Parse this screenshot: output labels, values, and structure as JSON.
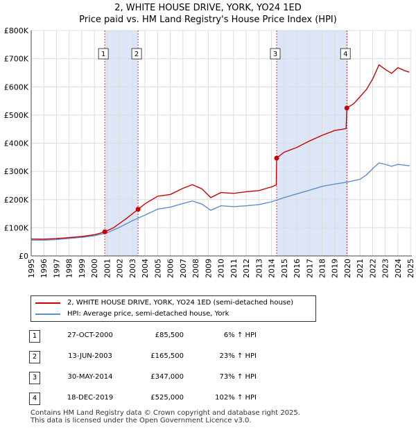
{
  "title_line1": "2, WHITE HOUSE DRIVE, YORK, YO24 1ED",
  "title_line2": "Price paid vs. HM Land Registry's House Price Index (HPI)",
  "colors": {
    "property": "#cc0000",
    "hpi": "#5b8fcf",
    "shade": "#dde6f7",
    "grid": "#dcdcdc"
  },
  "chart_data": {
    "type": "line",
    "title": "2, WHITE HOUSE DRIVE, YORK, YO24 1ED",
    "subtitle": "Price paid vs. HM Land Registry's House Price Index (HPI)",
    "xlabel": "",
    "ylabel": "",
    "xlim": [
      1995,
      2025.1
    ],
    "ylim": [
      0,
      800000
    ],
    "grid": true,
    "x_ticks": [
      1995,
      1996,
      1997,
      1998,
      1999,
      2000,
      2001,
      2002,
      2003,
      2004,
      2005,
      2006,
      2007,
      2008,
      2009,
      2010,
      2011,
      2012,
      2013,
      2014,
      2015,
      2016,
      2017,
      2018,
      2019,
      2020,
      2021,
      2022,
      2023,
      2024,
      2025
    ],
    "y_ticks": [
      {
        "value": 0,
        "label": "£0"
      },
      {
        "value": 100000,
        "label": "£100K"
      },
      {
        "value": 200000,
        "label": "£200K"
      },
      {
        "value": 300000,
        "label": "£300K"
      },
      {
        "value": 400000,
        "label": "£400K"
      },
      {
        "value": 500000,
        "label": "£500K"
      },
      {
        "value": 600000,
        "label": "£600K"
      },
      {
        "value": 700000,
        "label": "£700K"
      },
      {
        "value": 800000,
        "label": "£800K"
      }
    ],
    "shaded_ranges": [
      [
        2000.82,
        2003.45
      ],
      [
        2014.41,
        2019.96
      ]
    ],
    "series": [
      {
        "name": "2, WHITE HOUSE DRIVE, YORK, YO24 1ED (semi-detached house)",
        "color": "#cc0000",
        "points": [
          [
            1995.0,
            60000
          ],
          [
            1996.0,
            59500
          ],
          [
            1997.0,
            61500
          ],
          [
            1998.0,
            65000
          ],
          [
            1999.0,
            69000
          ],
          [
            2000.0,
            75000
          ],
          [
            2000.82,
            85500
          ],
          [
            2001.5,
            100000
          ],
          [
            2002.5,
            132000
          ],
          [
            2003.45,
            165500
          ],
          [
            2004.0,
            185000
          ],
          [
            2005.0,
            212000
          ],
          [
            2006.0,
            218000
          ],
          [
            2007.0,
            240000
          ],
          [
            2007.75,
            253000
          ],
          [
            2008.5,
            238000
          ],
          [
            2009.2,
            207000
          ],
          [
            2010.0,
            225000
          ],
          [
            2011.0,
            222000
          ],
          [
            2012.0,
            228000
          ],
          [
            2013.0,
            232000
          ],
          [
            2014.0,
            245000
          ],
          [
            2014.38,
            252000
          ],
          [
            2014.41,
            347000
          ],
          [
            2015.0,
            368000
          ],
          [
            2016.0,
            385000
          ],
          [
            2017.0,
            408000
          ],
          [
            2018.0,
            428000
          ],
          [
            2019.0,
            445000
          ],
          [
            2019.9,
            452000
          ],
          [
            2019.96,
            525000
          ],
          [
            2020.5,
            540000
          ],
          [
            2021.0,
            565000
          ],
          [
            2021.5,
            590000
          ],
          [
            2022.0,
            628000
          ],
          [
            2022.5,
            678000
          ],
          [
            2023.0,
            662000
          ],
          [
            2023.5,
            648000
          ],
          [
            2024.0,
            668000
          ],
          [
            2024.5,
            658000
          ],
          [
            2024.9,
            652000
          ]
        ]
      },
      {
        "name": "HPI: Average price, semi-detached house, York",
        "color": "#5b8fcf",
        "points": [
          [
            1995.0,
            56000
          ],
          [
            1996.0,
            56000
          ],
          [
            1997.0,
            58000
          ],
          [
            1998.0,
            62000
          ],
          [
            1999.0,
            66000
          ],
          [
            2000.0,
            72000
          ],
          [
            2001.0,
            82000
          ],
          [
            2002.0,
            102000
          ],
          [
            2003.0,
            125000
          ],
          [
            2004.0,
            145000
          ],
          [
            2005.0,
            166000
          ],
          [
            2006.0,
            173000
          ],
          [
            2007.0,
            186000
          ],
          [
            2007.75,
            195000
          ],
          [
            2008.5,
            184000
          ],
          [
            2009.2,
            162000
          ],
          [
            2010.0,
            178000
          ],
          [
            2011.0,
            175000
          ],
          [
            2012.0,
            178000
          ],
          [
            2013.0,
            182000
          ],
          [
            2014.0,
            192000
          ],
          [
            2015.0,
            207000
          ],
          [
            2016.0,
            220000
          ],
          [
            2017.0,
            233000
          ],
          [
            2018.0,
            247000
          ],
          [
            2019.0,
            255000
          ],
          [
            2020.0,
            262000
          ],
          [
            2021.0,
            272000
          ],
          [
            2021.5,
            287000
          ],
          [
            2022.0,
            310000
          ],
          [
            2022.5,
            330000
          ],
          [
            2023.0,
            325000
          ],
          [
            2023.5,
            318000
          ],
          [
            2024.0,
            325000
          ],
          [
            2024.5,
            322000
          ],
          [
            2024.9,
            320000
          ]
        ]
      }
    ],
    "sale_markers": [
      {
        "label": "1",
        "x": 2000.82,
        "y": 85500
      },
      {
        "label": "2",
        "x": 2003.45,
        "y": 165500
      },
      {
        "label": "3",
        "x": 2014.41,
        "y": 347000
      },
      {
        "label": "4",
        "x": 2019.96,
        "y": 525000
      }
    ]
  },
  "legend": {
    "property_label": "2, WHITE HOUSE DRIVE, YORK, YO24 1ED (semi-detached house)",
    "hpi_label": "HPI: Average price, semi-detached house, York"
  },
  "sales": [
    {
      "num": "1",
      "date": "27-OCT-2000",
      "price": "£85,500",
      "delta": "6% ↑ HPI"
    },
    {
      "num": "2",
      "date": "13-JUN-2003",
      "price": "£165,500",
      "delta": "23% ↑ HPI"
    },
    {
      "num": "3",
      "date": "30-MAY-2014",
      "price": "£347,000",
      "delta": "73% ↑ HPI"
    },
    {
      "num": "4",
      "date": "18-DEC-2019",
      "price": "£525,000",
      "delta": "102% ↑ HPI"
    }
  ],
  "footer": {
    "line1": "Contains HM Land Registry data © Crown copyright and database right 2025.",
    "line2": "This data is licensed under the Open Government Licence v3.0."
  }
}
